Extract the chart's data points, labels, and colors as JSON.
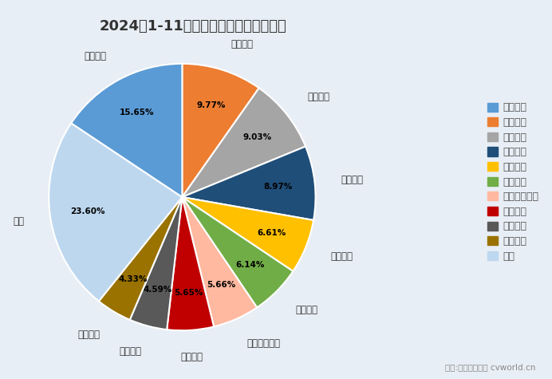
{
  "title": "2024年1-11月商用车市场前十企业份额",
  "plot_labels": [
    "东风公司",
    "重庆长安",
    "中国重汽",
    "一汽解放",
    "江淮汽车",
    "上汽通用五菱",
    "江铃汽车",
    "长城汽车",
    "陕汽集团",
    "其他",
    "福田汽车"
  ],
  "plot_values": [
    9.77,
    9.03,
    8.97,
    6.61,
    6.14,
    5.66,
    5.65,
    4.59,
    4.33,
    23.6,
    15.65
  ],
  "plot_colors": [
    "#ED7D31",
    "#A5A5A5",
    "#1F4E79",
    "#FFC000",
    "#70AD47",
    "#FFB9A0",
    "#C00000",
    "#595959",
    "#9A7200",
    "#BDD7EE",
    "#5B9BD5"
  ],
  "legend_labels": [
    "福田汽车",
    "东风公司",
    "重庆长安",
    "中国重汽",
    "一汽解放",
    "江淮汽车",
    "上汽通用五菱",
    "江铃汽车",
    "长城汽车",
    "陕汽集团",
    "其他"
  ],
  "legend_colors": [
    "#5B9BD5",
    "#ED7D31",
    "#A5A5A5",
    "#1F4E79",
    "#FFC000",
    "#70AD47",
    "#FFB9A0",
    "#C00000",
    "#595959",
    "#9A7200",
    "#BDD7EE"
  ],
  "footnote": "制图:第一商用车网 cvworld.cn",
  "background_color": "#E8EEF5"
}
